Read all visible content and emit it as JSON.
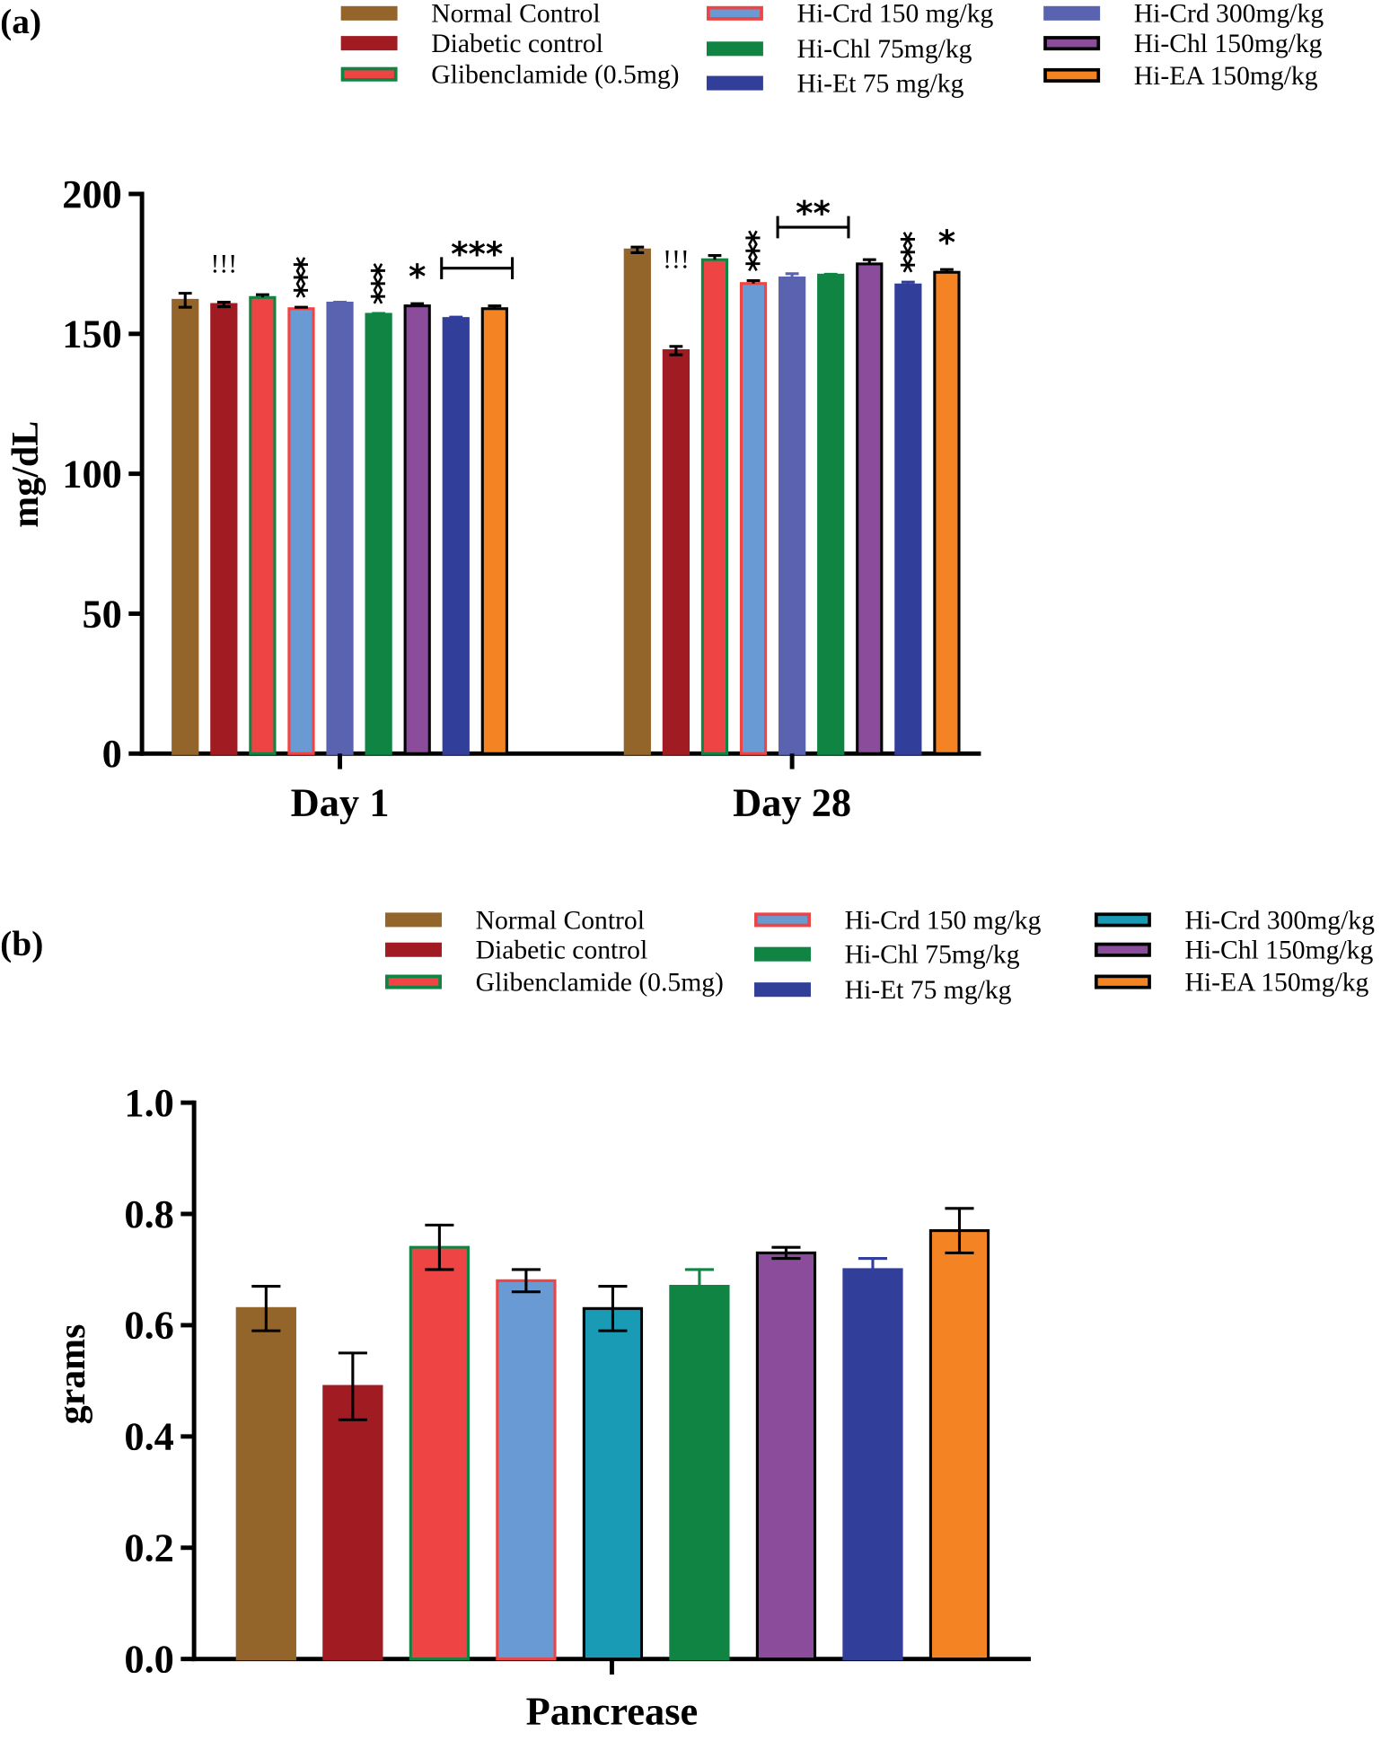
{
  "colors": {
    "normal_control": "#94652a",
    "diabetic_control": "#a11c22",
    "glibenclamide": "#ee4444",
    "hi_crd_150": "#6a9ad4",
    "hi_crd_300_a": "#5a63b0",
    "hi_crd_300_b": "#1a9bb5",
    "hi_chl_75": "#108543",
    "hi_chl_150": "#8a4c9b",
    "hi_et_75": "#323f9a",
    "hi_ea_150": "#f38323"
  },
  "chart_data": [
    {
      "panel_label": "(a)",
      "type": "bar",
      "ylabel": "mg/dL",
      "ylim": [
        0,
        200
      ],
      "yticks": [
        "0",
        "50",
        "100",
        "150",
        "200"
      ],
      "categories": [
        "Day 1",
        "Day 28"
      ],
      "legend": {
        "placement": "top",
        "entries": [
          "Normal Control",
          "Diabetic control",
          "Glibenclamide (0.5mg)",
          "Hi-Crd 150 mg/kg",
          "Hi-Chl 75mg/kg",
          "Hi-Et 75 mg/kg",
          "Hi-Crd 300mg/kg",
          "Hi-Chl 150mg/kg",
          "Hi-EA 150mg/kg"
        ]
      },
      "series": [
        {
          "name": "Normal Control",
          "values": [
            162,
            180
          ],
          "errors": [
            2.5,
            1
          ]
        },
        {
          "name": "Diabetic control",
          "values": [
            160.5,
            144
          ],
          "errors": [
            0.8,
            1.5
          ]
        },
        {
          "name": "Glibenclamide (0.5mg)",
          "values": [
            163,
            176.5
          ],
          "errors": [
            1,
            1.5
          ]
        },
        {
          "name": "Hi-Crd 150 mg/kg",
          "values": [
            159,
            168
          ],
          "errors": [
            0.5,
            1
          ]
        },
        {
          "name": "Hi-Crd 300mg/kg",
          "values": [
            161,
            170
          ],
          "errors": [
            0.3,
            1.5
          ]
        },
        {
          "name": "Hi-Chl 75mg/kg",
          "values": [
            157,
            171
          ],
          "errors": [
            0.3,
            0.3
          ]
        },
        {
          "name": "Hi-Chl 150mg/kg",
          "values": [
            160,
            175
          ],
          "errors": [
            0.8,
            1.5
          ]
        },
        {
          "name": "Hi-Et 75 mg/kg",
          "values": [
            155.5,
            167.5
          ],
          "errors": [
            0.5,
            1
          ]
        },
        {
          "name": "Hi-EA 150mg/kg",
          "values": [
            159,
            172
          ],
          "errors": [
            1,
            1
          ]
        }
      ],
      "annotations": [
        {
          "text": "!!!",
          "category": "Day 1",
          "series": 1
        },
        {
          "text": "***",
          "category": "Day 1",
          "series": 3,
          "vertical": true
        },
        {
          "text": "***",
          "category": "Day 1",
          "series": 5,
          "vertical": true
        },
        {
          "text": "*",
          "category": "Day 1",
          "series": 6
        },
        {
          "text": "***",
          "category": "Day 1",
          "bracket": [
            7,
            8
          ]
        },
        {
          "text": "!!!",
          "category": "Day 28",
          "series": 1
        },
        {
          "text": "***",
          "category": "Day 28",
          "series": 3,
          "vertical": true
        },
        {
          "text": "**",
          "category": "Day 28",
          "bracket": [
            4,
            5
          ]
        },
        {
          "text": "***",
          "category": "Day 28",
          "series": 7,
          "vertical": true
        },
        {
          "text": "*",
          "category": "Day 28",
          "series": 8
        }
      ]
    },
    {
      "panel_label": "(b)",
      "type": "bar",
      "ylabel": "grams",
      "xlabel": "Pancrease",
      "ylim": [
        0,
        1.0
      ],
      "yticks": [
        "0.0",
        "0.2",
        "0.4",
        "0.6",
        "0.8",
        "1.0"
      ],
      "legend": {
        "placement": "top",
        "entries": [
          "Normal Control",
          "Diabetic control",
          "Glibenclamide (0.5mg)",
          "Hi-Crd 150 mg/kg",
          "Hi-Chl 75mg/kg",
          "Hi-Et 75 mg/kg",
          "Hi-Crd 300mg/kg",
          "Hi-Chl 150mg/kg",
          "Hi-EA 150mg/kg"
        ]
      },
      "categories": [
        "Normal Control",
        "Diabetic control",
        "Glibenclamide (0.5mg)",
        "Hi-Crd 150 mg/kg",
        "Hi-Crd 300mg/kg",
        "Hi-Chl 75mg/kg",
        "Hi-Chl 150mg/kg",
        "Hi-Et 75 mg/kg",
        "Hi-EA 150mg/kg"
      ],
      "values": [
        0.63,
        0.49,
        0.74,
        0.68,
        0.63,
        0.67,
        0.73,
        0.7,
        0.77
      ],
      "errors": [
        0.04,
        0.06,
        0.04,
        0.02,
        0.04,
        0.03,
        0.01,
        0.02,
        0.04
      ]
    }
  ]
}
